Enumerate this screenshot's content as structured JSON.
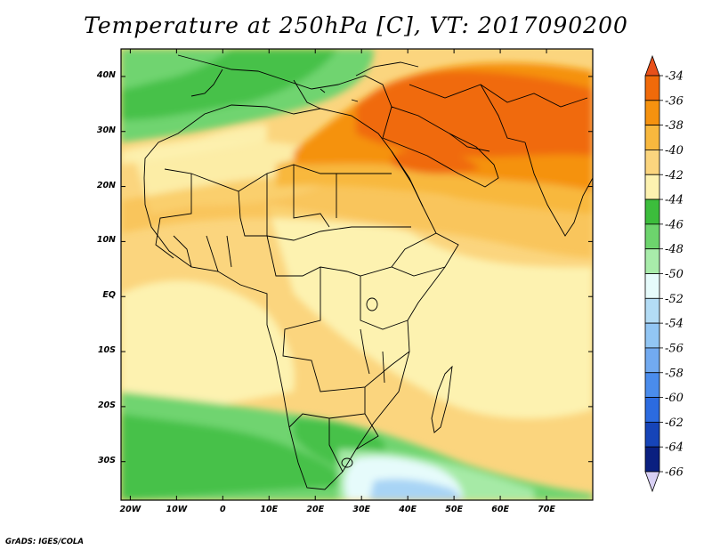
{
  "title": "Temperature at 250hPa [C], VT: 2017090200",
  "credit": "GrADS: IGES/COLA",
  "map": {
    "lon_range": [
      -22,
      80
    ],
    "lat_range": [
      -37,
      45
    ],
    "x_ticks": [
      "20W",
      "10W",
      "0",
      "10E",
      "20E",
      "30E",
      "40E",
      "50E",
      "60E",
      "70E"
    ],
    "x_tick_values": [
      -20,
      -10,
      0,
      10,
      20,
      30,
      40,
      50,
      60,
      70
    ],
    "y_ticks": [
      "40N",
      "30N",
      "20N",
      "10N",
      "EQ",
      "10S",
      "20S",
      "30S"
    ],
    "y_tick_values": [
      40,
      30,
      20,
      10,
      0,
      -10,
      -20,
      -30
    ]
  },
  "colorbar": {
    "labels": [
      "-34",
      "-36",
      "-38",
      "-40",
      "-42",
      "-44",
      "-46",
      "-48",
      "-50",
      "-52",
      "-54",
      "-56",
      "-58",
      "-60",
      "-62",
      "-64",
      "-66"
    ],
    "colors": [
      "#e8501a",
      "#f06a0a",
      "#f5920f",
      "#f8b83e",
      "#fbd57e",
      "#fdf2b0",
      "#3cbd3c",
      "#6dd46d",
      "#a8ecaa",
      "#e6fbfb",
      "#b3dcf5",
      "#92c6f4",
      "#72aaf0",
      "#4a8cec",
      "#2c6be0",
      "#1644b8",
      "#0a1f80",
      "#d8d0f4"
    ]
  },
  "colors": {
    "green_dark": "#46c14a",
    "green_mid": "#6fd470",
    "green_light": "#a6eaa6",
    "cyan_light": "#e6fbfb",
    "blue_light": "#a8d4f5",
    "cream": "#fdf2b0",
    "tan": "#fbd57e",
    "gold": "#f8b83e",
    "orange": "#f5920f",
    "red_orange": "#f06a0a"
  }
}
